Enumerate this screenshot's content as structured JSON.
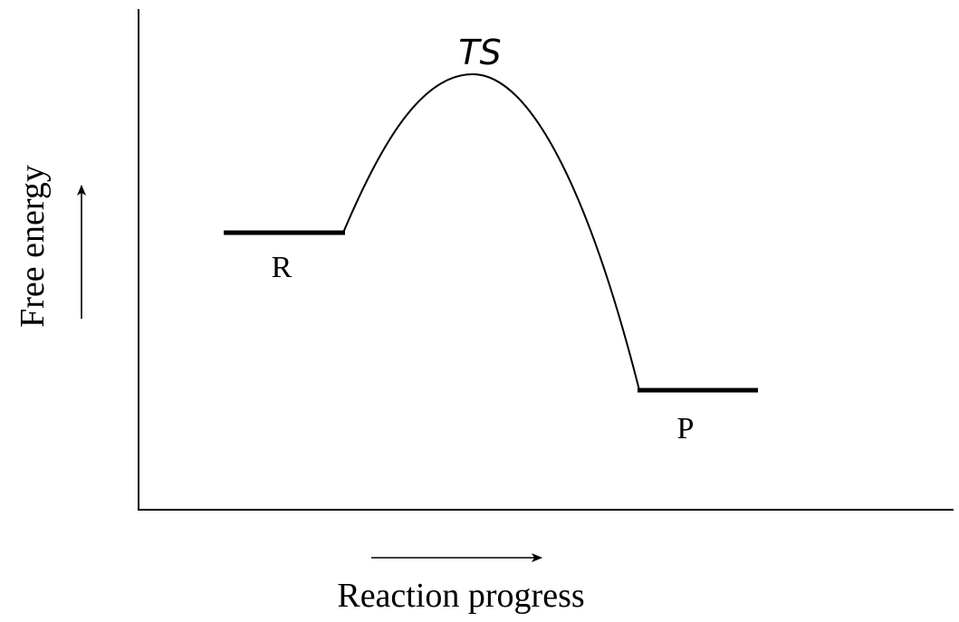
{
  "diagram": {
    "y_axis_label": "Free energy",
    "x_axis_label": "Reaction progress",
    "transition_state_label": "TS",
    "reactant_label": "R",
    "product_label": "P"
  },
  "colors": {
    "stroke": "#000000",
    "background": "#ffffff"
  }
}
